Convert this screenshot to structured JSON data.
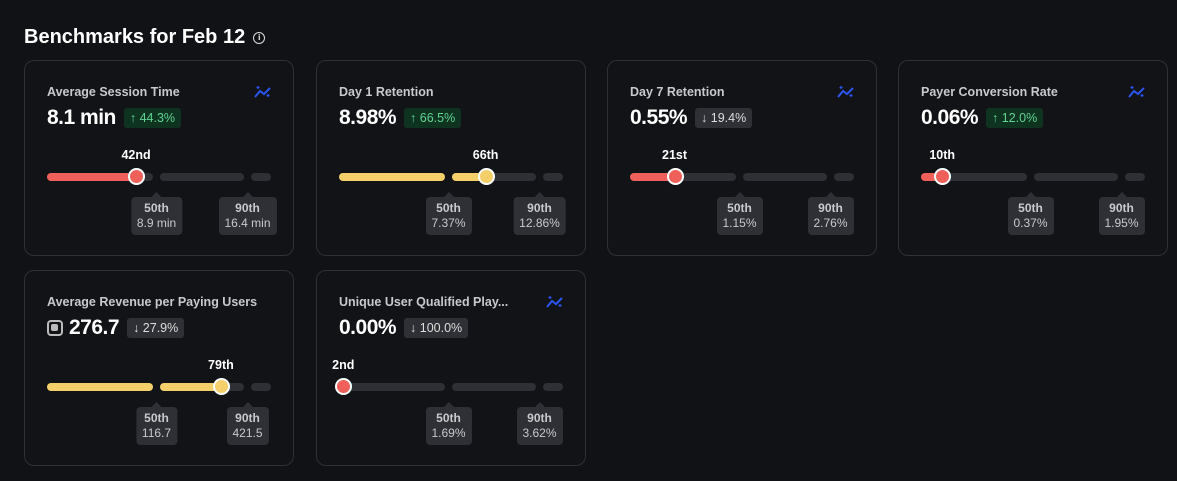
{
  "header": {
    "title": "Benchmarks for Feb 12",
    "info_icon": "info-icon"
  },
  "colors": {
    "below": "#f0605a",
    "above": "#f5d06a",
    "trend_icon": "#2b55f0"
  },
  "cards": [
    {
      "title": "Average Session Time",
      "value": "8.1 min",
      "change": "↑ 44.3%",
      "direction": "up",
      "trend_icon": true,
      "coin_icon": false,
      "percentile": 42,
      "percentile_label": "42nd",
      "p50_label": "50th",
      "p50_value": "8.9 min",
      "p90_label": "90th",
      "p90_value": "16.4 min"
    },
    {
      "title": "Day 1 Retention",
      "value": "8.98%",
      "change": "↑ 66.5%",
      "direction": "up",
      "trend_icon": false,
      "coin_icon": false,
      "percentile": 66,
      "percentile_label": "66th",
      "p50_label": "50th",
      "p50_value": "7.37%",
      "p90_label": "90th",
      "p90_value": "12.86%"
    },
    {
      "title": "Day 7 Retention",
      "value": "0.55%",
      "change": "↓ 19.4%",
      "direction": "down",
      "trend_icon": true,
      "coin_icon": false,
      "percentile": 21,
      "percentile_label": "21st",
      "p50_label": "50th",
      "p50_value": "1.15%",
      "p90_label": "90th",
      "p90_value": "2.76%"
    },
    {
      "title": "Payer Conversion Rate",
      "value": "0.06%",
      "change": "↑ 12.0%",
      "direction": "up",
      "trend_icon": true,
      "coin_icon": false,
      "percentile": 10,
      "percentile_label": "10th",
      "p50_label": "50th",
      "p50_value": "0.37%",
      "p90_label": "90th",
      "p90_value": "1.95%"
    },
    {
      "title": "Average Revenue per Paying Users",
      "value": "276.7",
      "change": "↓ 27.9%",
      "direction": "down",
      "trend_icon": false,
      "coin_icon": true,
      "percentile": 79,
      "percentile_label": "79th",
      "p50_label": "50th",
      "p50_value": "116.7",
      "p90_label": "90th",
      "p90_value": "421.5"
    },
    {
      "title": "Unique User Qualified Play...",
      "value": "0.00%",
      "change": "↓ 100.0%",
      "direction": "down",
      "trend_icon": true,
      "coin_icon": false,
      "percentile": 2,
      "percentile_label": "2nd",
      "p50_label": "50th",
      "p50_value": "1.69%",
      "p90_label": "90th",
      "p90_value": "3.62%"
    }
  ]
}
